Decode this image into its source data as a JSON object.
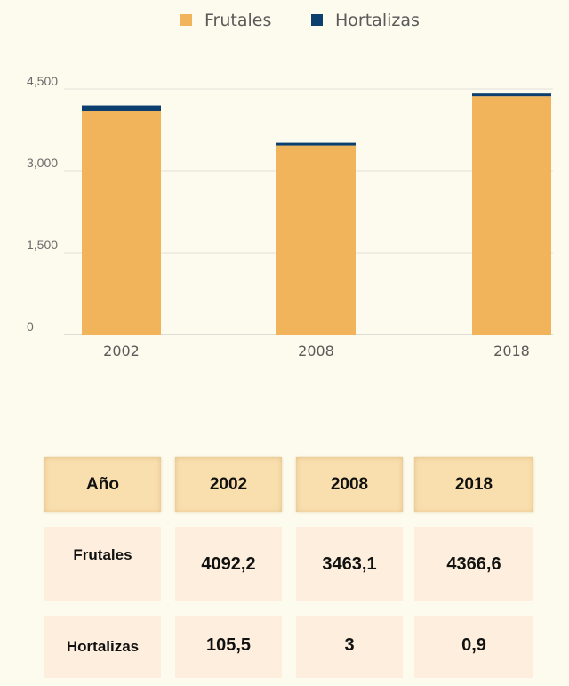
{
  "chart_data": {
    "type": "bar",
    "stacked": true,
    "categories": [
      "2002",
      "2008",
      "2018"
    ],
    "series": [
      {
        "name": "Frutales",
        "values": [
          4092.2,
          3463.1,
          4366.6
        ],
        "color": "#f2b45a"
      },
      {
        "name": "Hortalizas",
        "values": [
          105.5,
          3,
          0.9
        ],
        "color": "#0c3f6e"
      }
    ],
    "ylim": [
      0,
      4500
    ],
    "yticks": [
      {
        "value": 0,
        "label": "0"
      },
      {
        "value": 1500,
        "label": "1,500"
      },
      {
        "value": 3000,
        "label": "3,000"
      },
      {
        "value": 4500,
        "label": "4,500"
      }
    ],
    "grid": true,
    "legend": "top-center"
  },
  "table": {
    "header": [
      "Año",
      "2002",
      "2008",
      "2018"
    ],
    "rows": [
      {
        "label": "Frutales",
        "values": [
          "4092,2",
          "3463,1",
          "4366,6"
        ]
      },
      {
        "label": "Hortalizas",
        "values": [
          "105,5",
          "3",
          "0,9"
        ]
      }
    ]
  }
}
